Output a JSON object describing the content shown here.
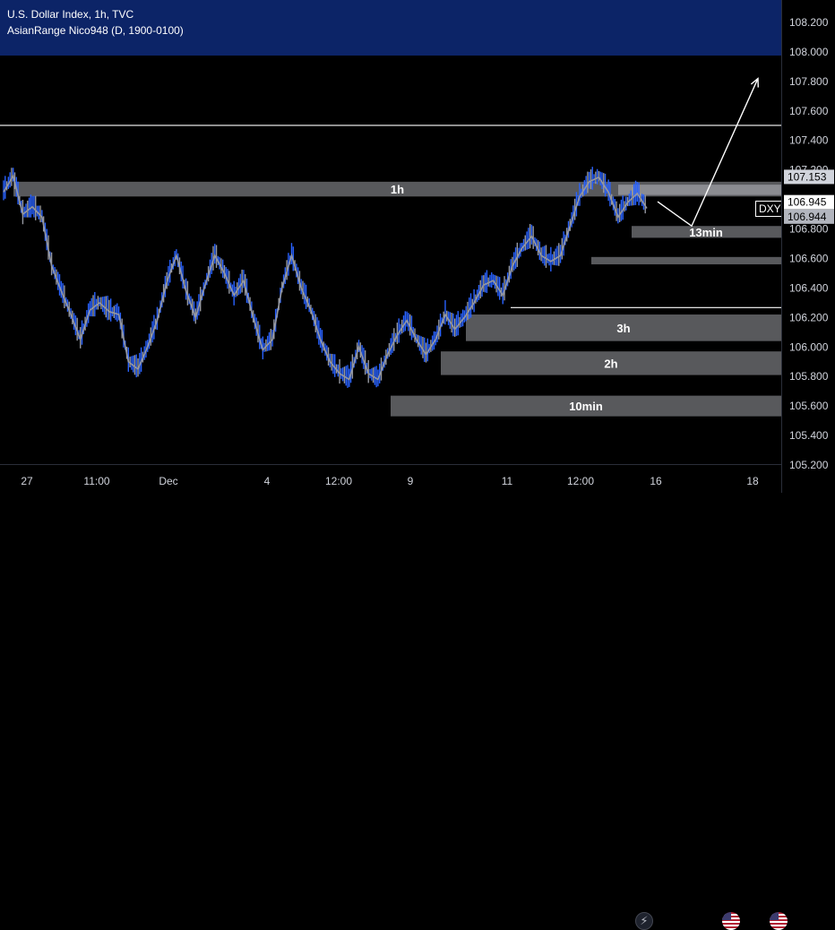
{
  "header": {
    "symbol_title": "U.S. Dollar Index, 1h, TVC",
    "indicator_title": "AsianRange Nico948 (D, 1900-0100)"
  },
  "colors": {
    "banner": "#0c2467",
    "zone_fill": "#d1d4dc",
    "candle_up": "#2962ff",
    "candle_down": "#9598a1",
    "line": "#ffffff",
    "price_tag_bg": "#ffffff"
  },
  "chart_data": {
    "type": "line",
    "title": "U.S. Dollar Index, 1h, TVC",
    "y_axis": {
      "ticks": [
        "108.200",
        "108.000",
        "107.800",
        "107.600",
        "107.400",
        "107.200",
        "107.000",
        "106.800",
        "106.600",
        "106.400",
        "106.200",
        "106.000",
        "105.800",
        "105.600",
        "105.400",
        "105.200"
      ],
      "range": [
        105.2,
        108.24
      ]
    },
    "x_axis": {
      "ticks": [
        "27",
        "11:00",
        "Dec",
        "4",
        "12:00",
        "9",
        "11",
        "12:00",
        "16",
        "18"
      ]
    },
    "price_series": {
      "name": "",
      "values": [
        107.05,
        107.16,
        106.9,
        106.95,
        106.88,
        106.55,
        106.38,
        106.22,
        106.05,
        106.25,
        106.3,
        106.24,
        106.22,
        105.9,
        105.85,
        106.0,
        106.18,
        106.44,
        106.62,
        106.38,
        106.2,
        106.42,
        106.62,
        106.5,
        106.35,
        106.45,
        106.2,
        105.98,
        106.05,
        106.4,
        106.62,
        106.4,
        106.25,
        106.05,
        105.9,
        105.82,
        105.78,
        106.0,
        105.82,
        105.78,
        105.95,
        106.08,
        106.18,
        106.05,
        105.95,
        106.05,
        106.22,
        106.12,
        106.2,
        106.3,
        106.42,
        106.45,
        106.35,
        106.55,
        106.67,
        106.75,
        106.62,
        106.58,
        106.62,
        106.82,
        107.02,
        107.12,
        107.15,
        107.05,
        106.88,
        106.98,
        107.04,
        106.94
      ]
    },
    "zones": [
      {
        "label": "1h",
        "top": 107.12,
        "bottom": 107.02
      },
      {
        "label": "",
        "top": 107.1,
        "bottom": 107.03
      },
      {
        "label": "13min",
        "top": 106.82,
        "bottom": 106.74
      },
      {
        "label": "",
        "top": 106.61,
        "bottom": 106.56
      },
      {
        "label": "3h",
        "top": 106.22,
        "bottom": 106.04
      },
      {
        "label": "2h",
        "top": 105.97,
        "bottom": 105.81
      },
      {
        "label": "10min",
        "top": 105.67,
        "bottom": 105.53
      }
    ],
    "horizontal_lines": [
      {
        "value": 107.502,
        "label": "107.502"
      },
      {
        "value": 106.267,
        "label": "106.267"
      }
    ],
    "price_tags": [
      {
        "value": 107.153,
        "label": "107.153"
      },
      {
        "value": 106.945,
        "label": "106.945",
        "symbol": "DXY"
      },
      {
        "value": 106.944,
        "label": "106.944"
      }
    ],
    "projection_path": [
      [
        106.985,
        0
      ],
      [
        106.82,
        1
      ],
      [
        107.82,
        2
      ]
    ],
    "grid": false,
    "legend": "none"
  }
}
